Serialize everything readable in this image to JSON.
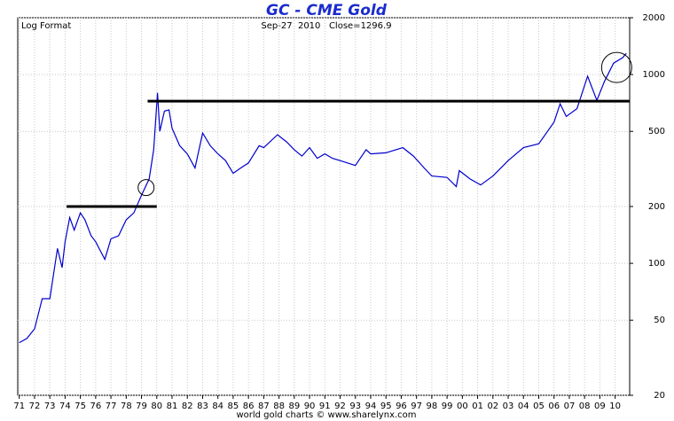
{
  "chart_data": {
    "type": "line",
    "title": "GC - CME Gold",
    "subtitle": "Log Format",
    "header": "Sep-27  2010   Close=1296.9",
    "footer": "world gold charts © www.sharelynx.com",
    "log_scale": true,
    "grid": true,
    "ylim": [
      20,
      2000
    ],
    "yticks": [
      20,
      50,
      100,
      200,
      500,
      1000,
      2000
    ],
    "xlim": [
      1970.9,
      2010.95
    ],
    "xticks": [
      {
        "value": 1971,
        "label": "71"
      },
      {
        "value": 1972,
        "label": "72"
      },
      {
        "value": 1973,
        "label": "73"
      },
      {
        "value": 1974,
        "label": "74"
      },
      {
        "value": 1975,
        "label": "75"
      },
      {
        "value": 1976,
        "label": "76"
      },
      {
        "value": 1977,
        "label": "77"
      },
      {
        "value": 1978,
        "label": "78"
      },
      {
        "value": 1979,
        "label": "79"
      },
      {
        "value": 1980,
        "label": "80"
      },
      {
        "value": 1981,
        "label": "81"
      },
      {
        "value": 1982,
        "label": "82"
      },
      {
        "value": 1983,
        "label": "83"
      },
      {
        "value": 1984,
        "label": "84"
      },
      {
        "value": 1985,
        "label": "85"
      },
      {
        "value": 1986,
        "label": "86"
      },
      {
        "value": 1987,
        "label": "87"
      },
      {
        "value": 1988,
        "label": "88"
      },
      {
        "value": 1989,
        "label": "89"
      },
      {
        "value": 1990,
        "label": "90"
      },
      {
        "value": 1991,
        "label": "91"
      },
      {
        "value": 1992,
        "label": "92"
      },
      {
        "value": 1993,
        "label": "93"
      },
      {
        "value": 1994,
        "label": "94"
      },
      {
        "value": 1995,
        "label": "95"
      },
      {
        "value": 1996,
        "label": "96"
      },
      {
        "value": 1997,
        "label": "97"
      },
      {
        "value": 1998,
        "label": "98"
      },
      {
        "value": 1999,
        "label": "99"
      },
      {
        "value": 2000,
        "label": "00"
      },
      {
        "value": 2001,
        "label": "01"
      },
      {
        "value": 2002,
        "label": "02"
      },
      {
        "value": 2003,
        "label": "03"
      },
      {
        "value": 2004,
        "label": "04"
      },
      {
        "value": 2005,
        "label": "05"
      },
      {
        "value": 2006,
        "label": "06"
      },
      {
        "value": 2007,
        "label": "07"
      },
      {
        "value": 2008,
        "label": "08"
      },
      {
        "value": 2009,
        "label": "09"
      },
      {
        "value": 2010,
        "label": "10"
      }
    ],
    "x": [
      1971.0,
      1971.5,
      1972.0,
      1972.5,
      1973.0,
      1973.5,
      1973.8,
      1974.0,
      1974.3,
      1974.6,
      1975.0,
      1975.3,
      1975.7,
      1976.0,
      1976.6,
      1977.0,
      1977.5,
      1978.0,
      1978.5,
      1979.0,
      1979.5,
      1979.8,
      1980.05,
      1980.2,
      1980.5,
      1980.8,
      1981.0,
      1981.5,
      1982.0,
      1982.5,
      1983.0,
      1983.5,
      1984.0,
      1984.5,
      1985.0,
      1985.5,
      1986.0,
      1986.7,
      1987.0,
      1987.9,
      1988.5,
      1989.0,
      1989.5,
      1990.0,
      1990.5,
      1991.0,
      1991.5,
      1992.0,
      1992.5,
      1993.0,
      1993.7,
      1994.0,
      1995.0,
      1996.1,
      1996.8,
      1997.5,
      1998.0,
      1999.0,
      1999.6,
      1999.8,
      2000.5,
      2001.2,
      2002.0,
      2003.0,
      2004.0,
      2005.0,
      2006.0,
      2006.4,
      2006.8,
      2007.5,
      2008.2,
      2008.8,
      2009.3,
      2009.9,
      2010.5,
      2010.73
    ],
    "series": [
      {
        "color": "#0000cc",
        "values": [
          38,
          40,
          45,
          65,
          65,
          120,
          95,
          130,
          175,
          150,
          185,
          170,
          140,
          130,
          105,
          135,
          140,
          170,
          185,
          230,
          280,
          400,
          800,
          500,
          640,
          650,
          520,
          420,
          380,
          320,
          490,
          420,
          380,
          350,
          300,
          320,
          340,
          420,
          410,
          480,
          440,
          400,
          370,
          410,
          360,
          380,
          360,
          350,
          340,
          330,
          400,
          380,
          385,
          410,
          370,
          320,
          290,
          285,
          255,
          310,
          280,
          260,
          290,
          350,
          410,
          430,
          560,
          700,
          600,
          660,
          980,
          730,
          920,
          1150,
          1230,
          1296.9
        ]
      }
    ],
    "hlines": [
      {
        "value": 200,
        "x": [
          1974.1,
          1980.0
        ]
      },
      {
        "value": 723,
        "x": [
          1979.4,
          2010.95
        ]
      }
    ],
    "circles": [
      {
        "x": 1979.3,
        "y": 252
      },
      {
        "x": 2010.1,
        "y": 1090
      }
    ]
  }
}
